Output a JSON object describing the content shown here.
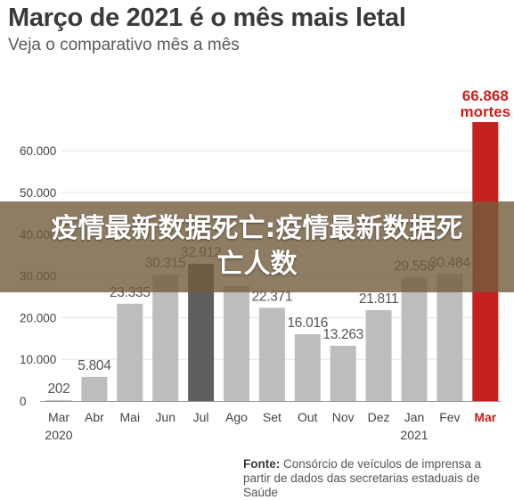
{
  "header": {
    "title": "Março de 2021 é o mês mais letal",
    "subtitle": "Veja o comparativo mês a mês"
  },
  "banner": {
    "text": "疫情最新数据死亡:疫情最新数据死亡人数"
  },
  "source": {
    "label": "Fonte:",
    "text": "Consórcio de veículos de imprensa a partir de dados das secretarias estaduais de Saúde"
  },
  "colors": {
    "bar": "#bdbdbd",
    "highlight": "#c8201e",
    "dark": "#5f5f5f",
    "text": "#444444"
  },
  "chart_data": {
    "type": "bar",
    "categories": [
      "Mar",
      "Abr",
      "Mai",
      "Jun",
      "Jul",
      "Ago",
      "Set",
      "Out",
      "Nov",
      "Dez",
      "Jan",
      "Fev",
      "Mar"
    ],
    "year_labels": [
      {
        "index": 0,
        "label": "2020"
      },
      {
        "index": 10,
        "label": "2021"
      }
    ],
    "values": [
      202,
      5804,
      23335,
      30315,
      32912,
      27600,
      22371,
      16016,
      13263,
      21811,
      29558,
      30484,
      66868
    ],
    "value_labels": [
      "202",
      "5.804",
      "23.335",
      "30.315",
      "32.912",
      "",
      "22.371",
      "16.016",
      "13.263",
      "21.811",
      "29.558",
      "30.484",
      "66.868"
    ],
    "highlight_index": 12,
    "dark_index": 4,
    "highlight_suffix": "mortes",
    "yticks": [
      0,
      10000,
      20000,
      30000,
      40000,
      50000,
      60000
    ],
    "ytick_labels": [
      "0",
      "10.000",
      "20.000",
      "30.000",
      "40.000",
      "50.000",
      "60.000"
    ],
    "ylim": [
      0,
      66868
    ],
    "grid": true,
    "title": "Março de 2021 é o mês mais letal",
    "subtitle": "Veja o comparativo mês a mês",
    "xlabel": "",
    "ylabel": ""
  }
}
